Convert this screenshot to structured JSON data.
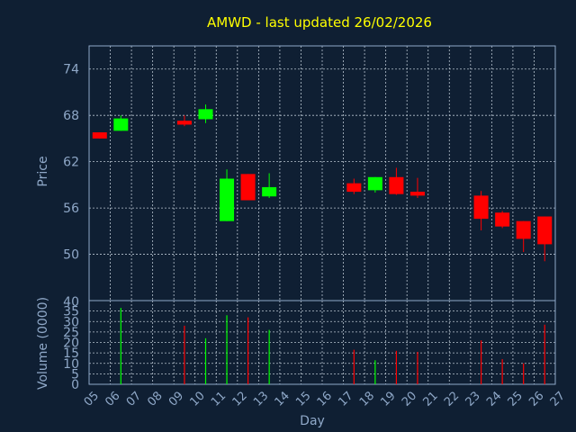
{
  "title": "AMWD - last updated 26/02/2026",
  "chart_data": [
    {
      "type": "candlestick",
      "ylabel": "Price",
      "ylim": [
        44,
        77
      ],
      "yticks": [
        50,
        56,
        62,
        68,
        74
      ],
      "grid": true,
      "up_color": "#00ff00",
      "down_color": "#ff0000",
      "candles": [
        {
          "day": "05",
          "open": 65.8,
          "high": 65.8,
          "low": 65.0,
          "close": 65.0
        },
        {
          "day": "06",
          "open": 66.0,
          "high": 68.0,
          "low": 66.0,
          "close": 67.6
        },
        {
          "day": "09",
          "open": 67.3,
          "high": 68.0,
          "low": 66.6,
          "close": 66.8
        },
        {
          "day": "10",
          "open": 67.5,
          "high": 69.4,
          "low": 67.0,
          "close": 68.8
        },
        {
          "day": "11",
          "open": 54.3,
          "high": 61.0,
          "low": 54.3,
          "close": 59.8
        },
        {
          "day": "12",
          "open": 60.4,
          "high": 60.4,
          "low": 57.0,
          "close": 57.0
        },
        {
          "day": "13",
          "open": 57.5,
          "high": 60.5,
          "low": 57.3,
          "close": 58.7
        },
        {
          "day": "17",
          "open": 59.2,
          "high": 59.8,
          "low": 57.8,
          "close": 58.1
        },
        {
          "day": "18",
          "open": 58.3,
          "high": 60.0,
          "low": 58.0,
          "close": 60.0
        },
        {
          "day": "19",
          "open": 60.0,
          "high": 61.2,
          "low": 57.7,
          "close": 57.8
        },
        {
          "day": "20",
          "open": 58.1,
          "high": 59.9,
          "low": 57.3,
          "close": 57.6
        },
        {
          "day": "23",
          "open": 57.6,
          "high": 58.2,
          "low": 53.1,
          "close": 54.6
        },
        {
          "day": "24",
          "open": 55.4,
          "high": 55.6,
          "low": 53.4,
          "close": 53.6
        },
        {
          "day": "25",
          "open": 54.3,
          "high": 54.3,
          "low": 50.3,
          "close": 52.0
        },
        {
          "day": "26",
          "open": 54.9,
          "high": 54.9,
          "low": 49.1,
          "close": 51.3
        }
      ]
    },
    {
      "type": "bar",
      "ylabel": "Volume (0000)",
      "ylim": [
        0,
        40
      ],
      "yticks": [
        0,
        5,
        10,
        15,
        20,
        25,
        30,
        35
      ],
      "top_tick_label": "40",
      "grid": true,
      "xlabel": "Day",
      "xticks": [
        "05",
        "06",
        "07",
        "08",
        "09",
        "10",
        "11",
        "12",
        "13",
        "14",
        "15",
        "16",
        "17",
        "18",
        "19",
        "20",
        "21",
        "22",
        "23",
        "24",
        "25",
        "26",
        "27"
      ],
      "bars": [
        {
          "day": "06",
          "value": 36.5,
          "color": "#00ff00"
        },
        {
          "day": "09",
          "value": 28.0,
          "color": "#ff0000"
        },
        {
          "day": "10",
          "value": 22.0,
          "color": "#00ff00"
        },
        {
          "day": "11",
          "value": 33.0,
          "color": "#00ff00"
        },
        {
          "day": "12",
          "value": 32.0,
          "color": "#ff0000"
        },
        {
          "day": "13",
          "value": 26.0,
          "color": "#00ff00"
        },
        {
          "day": "17",
          "value": 16.5,
          "color": "#ff0000"
        },
        {
          "day": "18",
          "value": 11.5,
          "color": "#00ff00"
        },
        {
          "day": "19",
          "value": 16.0,
          "color": "#ff0000"
        },
        {
          "day": "20",
          "value": 15.5,
          "color": "#ff0000"
        },
        {
          "day": "23",
          "value": 21.0,
          "color": "#ff0000"
        },
        {
          "day": "24",
          "value": 12.0,
          "color": "#ff0000"
        },
        {
          "day": "25",
          "value": 10.0,
          "color": "#ff0000"
        },
        {
          "day": "26",
          "value": 28.5,
          "color": "#ff0000"
        }
      ]
    }
  ]
}
